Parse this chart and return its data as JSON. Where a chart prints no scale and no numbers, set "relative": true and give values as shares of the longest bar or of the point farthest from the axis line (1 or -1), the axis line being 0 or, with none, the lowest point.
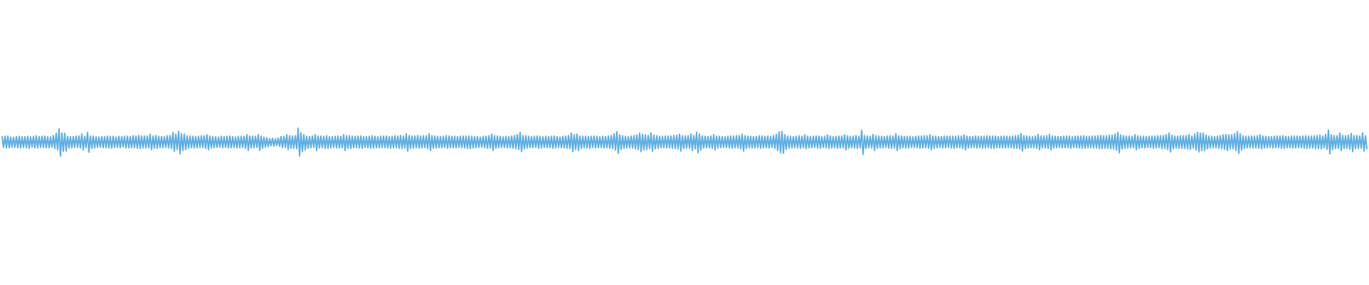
{
  "chart_data": {
    "type": "line",
    "relative": true,
    "color": "#5dade2",
    "categories": [
      null,
      null,
      null,
      null,
      null,
      null,
      null,
      null,
      null,
      null,
      null,
      null,
      null,
      null,
      null,
      null,
      null,
      null,
      null,
      null,
      null,
      null,
      null,
      null,
      null,
      null,
      null,
      null,
      null,
      null,
      null,
      null,
      null,
      null,
      null,
      null,
      null,
      null,
      null,
      null,
      null,
      null,
      null,
      null,
      null,
      null,
      null,
      null,
      null,
      null,
      null,
      null,
      null,
      null,
      null,
      null,
      null,
      null,
      null,
      null,
      null,
      null,
      null,
      null,
      null,
      null,
      null,
      null,
      null,
      null,
      null,
      null,
      null,
      null,
      null,
      null,
      null,
      null,
      null,
      null,
      null,
      null,
      null,
      null,
      null,
      null,
      null,
      null,
      null,
      null,
      null,
      null,
      null,
      null,
      null,
      null,
      null,
      null,
      null,
      null,
      null,
      null,
      null,
      null,
      null,
      null,
      null,
      null,
      null,
      null,
      null,
      null,
      null,
      null,
      null,
      null,
      null,
      null,
      null,
      null,
      null,
      null,
      null,
      null,
      null,
      null,
      null,
      null,
      null,
      null,
      null,
      null,
      null,
      null,
      null,
      null,
      null,
      null,
      null,
      null,
      null,
      null,
      null,
      null,
      null,
      null,
      null,
      null,
      null,
      null,
      null,
      null,
      null,
      null,
      null,
      null,
      null,
      null,
      null,
      null,
      null,
      null,
      null,
      null,
      null,
      null,
      null,
      null,
      null,
      null,
      null,
      null,
      null,
      null,
      null,
      null,
      null,
      null,
      null,
      null,
      null,
      null,
      null,
      null,
      null,
      null,
      null,
      null,
      null,
      null,
      null,
      null,
      null,
      null,
      null,
      null,
      null,
      null,
      null,
      null,
      null,
      null,
      null,
      null,
      null,
      null,
      null,
      null,
      null,
      null,
      null,
      null,
      null,
      null,
      null,
      null,
      null,
      null,
      null,
      null,
      null,
      null,
      null,
      null,
      null,
      null,
      null,
      null,
      null,
      null,
      null,
      null,
      null,
      null,
      null,
      null,
      null,
      null,
      null,
      null,
      null,
      null,
      null,
      null,
      null,
      null,
      null,
      null,
      null,
      null,
      null,
      null,
      null,
      null,
      null,
      null,
      null,
      null,
      null,
      null,
      null,
      null,
      null,
      null,
      null,
      null,
      null,
      null,
      null,
      null,
      null,
      null,
      null,
      null,
      null,
      null,
      null,
      null,
      null,
      null,
      null,
      null,
      null,
      null,
      null,
      null,
      null,
      null,
      null,
      null,
      null,
      null,
      null,
      null,
      null,
      null,
      null,
      null,
      null,
      null,
      null,
      null,
      null,
      null,
      null,
      null,
      null,
      null,
      null,
      null,
      null,
      null,
      null,
      null,
      null,
      null,
      null,
      null,
      null,
      null,
      null,
      null,
      null,
      null,
      null,
      null,
      null,
      null,
      null,
      null,
      null,
      null,
      null,
      null,
      null,
      null,
      null,
      null,
      null,
      null,
      null,
      null,
      null,
      null,
      null,
      null,
      null,
      null,
      null,
      null,
      null,
      null,
      null,
      null,
      null,
      null,
      null,
      null,
      null,
      null,
      null,
      null,
      null,
      null,
      null,
      null,
      null,
      null,
      null,
      null,
      null,
      null,
      null,
      null,
      null,
      null,
      null,
      null,
      null,
      null,
      null,
      null,
      null,
      null,
      null,
      null,
      null,
      null,
      null,
      null,
      null,
      null,
      null,
      null,
      null,
      null,
      null,
      null,
      null,
      null,
      null,
      null,
      null,
      null,
      null,
      null,
      null,
      null,
      null,
      null,
      null,
      null,
      null,
      null,
      null,
      null,
      null,
      null,
      null,
      null,
      null,
      null,
      null,
      null,
      null,
      null,
      null,
      null,
      null,
      null,
      null,
      null,
      null,
      null,
      null,
      null,
      null,
      null,
      null,
      null,
      null,
      null,
      null,
      null,
      null,
      null,
      null,
      null,
      null,
      null,
      null,
      null,
      null,
      null,
      null,
      null,
      null,
      null,
      null,
      null,
      null,
      null,
      null,
      null,
      null,
      null,
      null,
      null,
      null,
      null,
      null,
      null,
      null,
      null,
      null,
      null,
      null,
      null,
      null,
      null,
      null,
      null,
      null,
      null,
      null,
      null,
      null,
      null,
      null,
      null,
      null,
      null,
      null,
      null,
      null,
      null,
      null,
      null,
      null,
      null,
      null,
      null,
      null,
      null,
      null,
      null,
      null,
      null,
      null,
      null,
      null,
      null,
      null,
      null,
      null,
      null,
      null,
      null,
      null,
      null,
      null,
      null,
      null,
      null,
      null,
      null,
      null,
      null,
      null,
      null,
      null,
      null,
      null,
      null,
      null,
      null,
      null,
      null,
      null,
      null,
      null,
      null,
      null,
      null,
      null,
      null,
      null,
      null,
      null,
      null,
      null,
      null,
      null,
      null,
      null,
      null,
      null,
      null,
      null,
      null,
      null,
      null,
      null,
      null,
      null,
      null,
      null,
      null,
      null,
      null,
      null,
      null,
      null,
      null,
      null,
      null,
      null,
      null,
      null,
      null,
      null,
      null,
      null,
      null,
      null,
      null,
      null,
      null,
      null,
      null,
      null,
      null,
      null,
      null,
      null,
      null,
      null,
      null,
      null,
      null,
      null,
      null,
      null,
      null,
      null,
      null,
      null,
      null,
      null,
      null,
      null,
      null,
      null,
      null,
      null,
      null,
      null,
      null,
      null,
      null,
      null,
      null,
      null,
      null,
      null,
      null,
      null,
      null,
      null,
      null,
      null,
      null,
      null,
      null,
      null,
      null,
      null,
      null,
      null,
      null,
      null,
      null,
      null,
      null,
      null,
      null,
      null,
      null,
      null,
      null,
      null,
      null,
      null,
      null,
      null,
      null,
      null,
      null,
      null,
      null,
      null,
      null,
      null,
      null,
      null,
      null,
      null,
      null,
      null,
      null,
      null,
      null,
      null,
      null,
      null,
      null,
      null,
      null,
      null,
      null,
      null,
      null,
      null,
      null,
      null,
      null,
      null,
      null,
      null,
      null,
      null,
      null,
      null,
      null,
      null,
      null,
      null,
      null,
      null,
      null,
      null,
      null,
      null,
      null,
      null,
      null,
      null,
      null,
      null,
      null,
      null,
      null,
      null,
      null,
      null,
      null,
      null,
      null,
      null,
      null,
      null,
      null,
      null,
      null,
      null,
      null,
      null,
      null,
      null,
      null,
      null,
      null,
      null,
      null,
      null,
      null,
      null,
      null,
      null,
      null,
      null,
      null,
      null,
      null,
      null,
      null,
      null,
      null,
      null,
      null,
      null,
      null,
      null,
      null,
      null,
      null,
      null,
      null,
      null,
      null,
      null,
      null,
      null,
      null,
      null,
      null,
      null,
      null,
      null,
      null,
      null,
      null,
      null,
      null,
      null,
      null,
      null,
      null,
      null,
      null,
      null,
      null,
      null,
      null,
      null,
      null,
      null,
      null,
      null,
      null,
      null,
      null,
      null,
      null,
      null,
      null,
      null,
      null,
      null,
      null,
      null,
      null,
      null,
      null,
      null,
      null,
      null,
      null,
      null,
      null,
      null,
      null,
      null,
      null,
      null,
      null,
      null,
      null,
      null,
      null,
      null,
      null,
      null,
      null,
      null,
      null,
      null,
      null,
      null,
      null,
      null,
      null,
      null,
      null,
      null,
      null,
      null,
      null,
      null,
      null,
      null,
      null,
      null,
      null,
      null,
      null,
      null,
      null,
      null,
      null,
      null,
      null,
      null,
      null,
      null,
      null,
      null,
      null,
      null,
      null,
      null,
      null,
      null,
      null,
      null,
      null,
      null,
      null,
      null,
      null,
      null,
      null,
      null,
      null,
      null,
      null,
      null,
      null,
      null,
      null,
      null,
      null,
      null,
      null,
      null,
      null,
      null,
      null,
      null,
      null,
      null,
      null,
      null,
      null,
      null,
      null,
      null,
      null,
      null,
      null,
      null,
      null,
      null,
      null,
      null,
      null,
      null,
      null,
      null,
      null,
      null,
      null,
      null,
      null,
      null,
      null,
      null,
      null,
      null,
      null,
      null,
      null,
      null,
      null,
      null,
      null,
      null,
      null,
      null,
      null,
      null,
      null,
      null,
      null,
      null,
      null,
      null,
      null,
      null,
      null,
      null,
      null,
      null,
      null,
      null,
      null,
      null,
      null,
      null,
      null,
      null,
      null,
      null,
      null,
      null,
      null,
      null,
      null,
      null,
      null
    ],
    "values": [
      0.7,
      0.31,
      0.71,
      0.29,
      0.72,
      0.3,
      0.68,
      0.32,
      0.68,
      0.32,
      0.7,
      0.3,
      0.71,
      0.29,
      0.69,
      0.31,
      0.7,
      0.3,
      0.71,
      0.28,
      0.69,
      0.33,
      0.71,
      0.3,
      0.73,
      0.29,
      0.7,
      0.31,
      0.71,
      0.31,
      0.72,
      0.3,
      0.69,
      0.3,
      0.69,
      0.32,
      0.74,
      0.28,
      0.82,
      0.22,
      0.98,
      0,
      0.83,
      0.17,
      0.82,
      0.18,
      0.71,
      0.29,
      0.7,
      0.3,
      0.7,
      0.31,
      0.72,
      0.31,
      0.72,
      0.29,
      0.79,
      0.22,
      0.71,
      0.3,
      0.85,
      0.14,
      0.72,
      0.28,
      0.72,
      0.29,
      0.69,
      0.31,
      0.68,
      0.32,
      0.7,
      0.3,
      0.7,
      0.3,
      0.72,
      0.29,
      0.71,
      0.28,
      0.71,
      0.31,
      0.68,
      0.31,
      0.71,
      0.3,
      0.7,
      0.33,
      0.71,
      0.29,
      0.72,
      0.29,
      0.7,
      0.3,
      0.73,
      0.3,
      0.72,
      0.28,
      0.74,
      0.27,
      0.72,
      0.29,
      0.72,
      0.29,
      0.72,
      0.3,
      0.79,
      0.23,
      0.72,
      0.28,
      0.74,
      0.28,
      0.71,
      0.3,
      0.7,
      0.3,
      0.7,
      0.31,
      0.73,
      0.29,
      0.74,
      0.27,
      0.85,
      0.17,
      0.79,
      0.24,
      0.89,
      0.08,
      0.8,
      0.2,
      0.79,
      0.23,
      0.73,
      0.28,
      0.72,
      0.3,
      0.71,
      0.29,
      0.7,
      0.29,
      0.71,
      0.31,
      0.73,
      0.31,
      0.73,
      0.28,
      0.76,
      0.23,
      0.72,
      0.29,
      0.7,
      0.3,
      0.69,
      0.31,
      0.68,
      0.32,
      0.71,
      0.3,
      0.7,
      0.31,
      0.71,
      0.29,
      0.72,
      0.3,
      0.7,
      0.31,
      0.68,
      0.29,
      0.71,
      0.3,
      0.71,
      0.31,
      0.71,
      0.28,
      0.77,
      0.2,
      0.72,
      0.29,
      0.72,
      0.3,
      0.71,
      0.31,
      0.77,
      0.2,
      0.72,
      0.28,
      0.68,
      0.32,
      0.66,
      0.34,
      0.63,
      0.37,
      0.64,
      0.36,
      0.62,
      0.38,
      0.65,
      0.35,
      0.7,
      0.3,
      0.7,
      0.31,
      0.77,
      0.24,
      0.73,
      0.28,
      0.72,
      0.28,
      0.73,
      0.27,
      1,
      0,
      0.84,
      0.16,
      0.77,
      0.22,
      0.71,
      0.28,
      0.7,
      0.3,
      0.72,
      0.31,
      0.77,
      0.2,
      0.72,
      0.29,
      0.72,
      0.3,
      0.71,
      0.28,
      0.73,
      0.28,
      0.7,
      0.3,
      0.7,
      0.31,
      0.71,
      0.29,
      0.72,
      0.29,
      0.71,
      0.3,
      0.77,
      0.2,
      0.73,
      0.28,
      0.73,
      0.27,
      0.71,
      0.3,
      0.71,
      0.3,
      0.72,
      0.29,
      0.72,
      0.28,
      0.7,
      0.31,
      0.7,
      0.3,
      0.71,
      0.28,
      0.73,
      0.29,
      0.71,
      0.3,
      0.69,
      0.3,
      0.71,
      0.31,
      0.72,
      0.3,
      0.72,
      0.29,
      0.7,
      0.28,
      0.71,
      0.3,
      0.73,
      0.3,
      0.72,
      0.28,
      0.74,
      0.27,
      0.72,
      0.29,
      0.8,
      0.18,
      0.74,
      0.27,
      0.72,
      0.29,
      0.72,
      0.3,
      0.74,
      0.28,
      0.72,
      0.29,
      0.73,
      0.3,
      0.73,
      0.27,
      0.8,
      0.2,
      0.73,
      0.28,
      0.72,
      0.29,
      0.71,
      0.3,
      0.7,
      0.3,
      0.71,
      0.31,
      0.73,
      0.28,
      0.72,
      0.3,
      0.71,
      0.3,
      0.71,
      0.29,
      0.7,
      0.31,
      0.71,
      0.3,
      0.72,
      0.29,
      0.72,
      0.27,
      0.72,
      0.26,
      0.71,
      0.29,
      0.7,
      0.3,
      0.7,
      0.31,
      0.68,
      0.32,
      0.71,
      0.3,
      0.71,
      0.28,
      0.73,
      0.29,
      0.79,
      0.2,
      0.73,
      0.28,
      0.72,
      0.3,
      0.71,
      0.31,
      0.69,
      0.31,
      0.71,
      0.29,
      0.7,
      0.3,
      0.72,
      0.28,
      0.74,
      0.27,
      0.77,
      0.24,
      0.85,
      0.16,
      0.74,
      0.26,
      0.73,
      0.29,
      0.71,
      0.3,
      0.7,
      0.3,
      0.71,
      0.31,
      0.72,
      0.28,
      0.71,
      0.29,
      0.69,
      0.31,
      0.71,
      0.3,
      0.7,
      0.3,
      0.71,
      0.28,
      0.72,
      0.29,
      0.7,
      0.31,
      0.68,
      0.3,
      0.71,
      0.29,
      0.72,
      0.28,
      0.74,
      0.27,
      0.83,
      0.16,
      0.77,
      0.24,
      0.79,
      0.2,
      0.72,
      0.28,
      0.71,
      0.3,
      0.71,
      0.29,
      0.7,
      0.28,
      0.71,
      0.31,
      0.72,
      0.29,
      0.71,
      0.3,
      0.69,
      0.31,
      0.71,
      0.29,
      0.7,
      0.3,
      0.72,
      0.28,
      0.74,
      0.27,
      0.8,
      0.22,
      0.88,
      0.1,
      0.76,
      0.24,
      0.73,
      0.28,
      0.71,
      0.3,
      0.7,
      0.3,
      0.72,
      0.29,
      0.74,
      0.26,
      0.76,
      0.24,
      0.83,
      0.16,
      0.78,
      0.22,
      0.76,
      0.24,
      0.74,
      0.27,
      0.83,
      0.18,
      0.75,
      0.26,
      0.73,
      0.28,
      0.71,
      0.3,
      0.71,
      0.3,
      0.72,
      0.29,
      0.72,
      0.29,
      0.72,
      0.28,
      0.74,
      0.27,
      0.75,
      0.26,
      0.79,
      0.18,
      0.73,
      0.27,
      0.73,
      0.29,
      0.73,
      0.28,
      0.79,
      0.2,
      0.74,
      0.26,
      0.85,
      0.12,
      0.79,
      0.22,
      0.72,
      0.29,
      0.71,
      0.3,
      0.7,
      0.3,
      0.72,
      0.28,
      0.77,
      0.23,
      0.72,
      0.29,
      0.71,
      0.3,
      0.7,
      0.31,
      0.69,
      0.31,
      0.71,
      0.29,
      0.72,
      0.28,
      0.72,
      0.3,
      0.73,
      0.29,
      0.74,
      0.26,
      0.79,
      0.18,
      0.73,
      0.27,
      0.72,
      0.3,
      0.71,
      0.29,
      0.7,
      0.29,
      0.71,
      0.31,
      0.73,
      0.28,
      0.72,
      0.3,
      0.71,
      0.3,
      0.72,
      0.29,
      0.7,
      0.31,
      0.74,
      0.27,
      0.78,
      0.2,
      0.87,
      0.12,
      0.88,
      0.1,
      0.77,
      0.24,
      0.72,
      0.29,
      0.71,
      0.3,
      0.7,
      0.3,
      0.71,
      0.29,
      0.73,
      0.28,
      0.71,
      0.3,
      0.76,
      0.26,
      0.72,
      0.29,
      0.7,
      0.3,
      0.71,
      0.31,
      0.72,
      0.29,
      0.72,
      0.28,
      0.69,
      0.31,
      0.71,
      0.3,
      0.76,
      0.28,
      0.72,
      0.29,
      0.7,
      0.3,
      0.71,
      0.28,
      0.72,
      0.29,
      0.72,
      0.3,
      0.76,
      0.23,
      0.73,
      0.28,
      0.71,
      0.3,
      0.72,
      0.29,
      0.74,
      0.28,
      0.71,
      0.3,
      0.93,
      0.06,
      0.74,
      0.27,
      0.72,
      0.3,
      0.71,
      0.29,
      0.78,
      0.2,
      0.73,
      0.28,
      0.72,
      0.29,
      0.71,
      0.3,
      0.7,
      0.31,
      0.72,
      0.28,
      0.73,
      0.28,
      0.72,
      0.29,
      0.8,
      0.2,
      0.73,
      0.27,
      0.72,
      0.3,
      0.71,
      0.29,
      0.71,
      0.29,
      0.71,
      0.31,
      0.69,
      0.31,
      0.71,
      0.3,
      0.72,
      0.28,
      0.72,
      0.29,
      0.73,
      0.3,
      0.73,
      0.28,
      0.76,
      0.23,
      0.72,
      0.28,
      0.71,
      0.3,
      0.7,
      0.31,
      0.7,
      0.29,
      0.72,
      0.3,
      0.72,
      0.31,
      0.72,
      0.29,
      0.71,
      0.28,
      0.71,
      0.3,
      0.73,
      0.3,
      0.72,
      0.28,
      0.76,
      0.23,
      0.72,
      0.29,
      0.7,
      0.3,
      0.7,
      0.31,
      0.72,
      0.29,
      0.71,
      0.3,
      0.71,
      0.28,
      0.71,
      0.29,
      0.73,
      0.3,
      0.72,
      0.28,
      0.72,
      0.27,
      0.72,
      0.3,
      0.7,
      0.3,
      0.71,
      0.29,
      0.72,
      0.29,
      0.71,
      0.31,
      0.71,
      0.3,
      0.72,
      0.28,
      0.73,
      0.28,
      0.75,
      0.26,
      0.81,
      0.18,
      0.73,
      0.27,
      0.72,
      0.29,
      0.71,
      0.3,
      0.7,
      0.3,
      0.72,
      0.28,
      0.78,
      0.23,
      0.72,
      0.29,
      0.72,
      0.29,
      0.73,
      0.28,
      0.78,
      0.23,
      0.72,
      0.29,
      0.71,
      0.3,
      0.7,
      0.31,
      0.7,
      0.29,
      0.72,
      0.3,
      0.72,
      0.3,
      0.72,
      0.28,
      0.69,
      0.31,
      0.71,
      0.3,
      0.72,
      0.29,
      0.72,
      0.28,
      0.73,
      0.28,
      0.71,
      0.3,
      0.71,
      0.3,
      0.72,
      0.29,
      0.72,
      0.29,
      0.73,
      0.27,
      0.74,
      0.27,
      0.73,
      0.28,
      0.73,
      0.28,
      0.75,
      0.26,
      0.75,
      0.26,
      0.79,
      0.22,
      0.85,
      0.12,
      0.76,
      0.25,
      0.74,
      0.28,
      0.72,
      0.29,
      0.72,
      0.29,
      0.71,
      0.3,
      0.77,
      0.23,
      0.73,
      0.28,
      0.71,
      0.3,
      0.71,
      0.29,
      0.7,
      0.31,
      0.71,
      0.3,
      0.72,
      0.28,
      0.72,
      0.29,
      0.73,
      0.3,
      0.73,
      0.27,
      0.74,
      0.27,
      0.77,
      0.24,
      0.83,
      0.15,
      0.75,
      0.26,
      0.72,
      0.29,
      0.72,
      0.28,
      0.73,
      0.28,
      0.73,
      0.27,
      0.74,
      0.26,
      0.77,
      0.24,
      0.72,
      0.29,
      0.79,
      0.22,
      0.85,
      0.15,
      0.83,
      0.2,
      0.83,
      0.2,
      0.75,
      0.26,
      0.72,
      0.29,
      0.71,
      0.3,
      0.7,
      0.3,
      0.72,
      0.28,
      0.73,
      0.27,
      0.76,
      0.24,
      0.77,
      0.2,
      0.76,
      0.26,
      0.76,
      0.26,
      0.8,
      0.2,
      0.88,
      0.1,
      0.8,
      0.22,
      0.73,
      0.28,
      0.71,
      0.3,
      0.71,
      0.3,
      0.72,
      0.29,
      0.72,
      0.29,
      0.73,
      0.28,
      0.76,
      0.26,
      0.72,
      0.29,
      0.71,
      0.3,
      0.7,
      0.31,
      0.7,
      0.29,
      0.72,
      0.3,
      0.72,
      0.3,
      0.72,
      0.28,
      0.73,
      0.28,
      0.71,
      0.3,
      0.7,
      0.3,
      0.72,
      0.29,
      0.72,
      0.29,
      0.72,
      0.3,
      0.71,
      0.3,
      0.72,
      0.28,
      0.73,
      0.28,
      0.72,
      0.29,
      0.72,
      0.29,
      0.73,
      0.27,
      0.74,
      0.27,
      0.75,
      0.26,
      0.72,
      0.3,
      0.78,
      0.24,
      0.93,
      0.08,
      0.76,
      0.24,
      0.74,
      0.27,
      0.73,
      0.28,
      0.83,
      0.2,
      0.74,
      0.27,
      0.73,
      0.28,
      0.75,
      0.25,
      0.81,
      0.16,
      0.73,
      0.27,
      0.74,
      0.27,
      0.72,
      0.28,
      0.83,
      0.18,
      0.73,
      0.26
    ]
  }
}
